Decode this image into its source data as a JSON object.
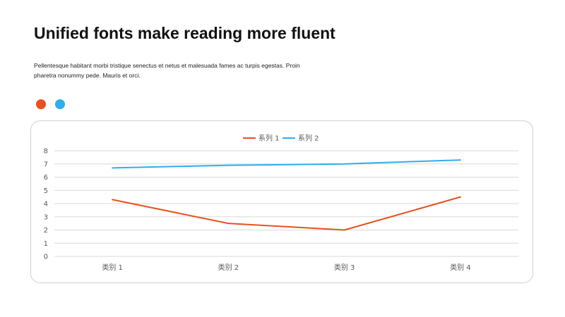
{
  "slide": {
    "title": "Unified fonts make reading more fluent",
    "body": "Pellentesque  habitant  morbi  tristique  senectus  et netus  et malesuada  fames  ac turpis  egestas.  Proin pharetra nonummy  pede. Mauris et orci.",
    "dot_colors": [
      "#E8511E",
      "#2EAEEE"
    ]
  },
  "chart_data": {
    "type": "line",
    "title": "",
    "xlabel": "",
    "ylabel": "",
    "categories": [
      "类别 1",
      "类别 2",
      "类别 3",
      "类别 4"
    ],
    "ylim": [
      0,
      8
    ],
    "yticks": [
      0,
      1,
      2,
      3,
      4,
      5,
      6,
      7,
      8
    ],
    "grid": true,
    "legend_position": "top-center",
    "series": [
      {
        "name": "系列 1",
        "color": "#E8511E",
        "values": [
          4.3,
          2.5,
          2.0,
          4.5
        ]
      },
      {
        "name": "系列 2",
        "color": "#2EAEEE",
        "values": [
          6.7,
          6.9,
          7.0,
          7.3
        ]
      }
    ]
  }
}
